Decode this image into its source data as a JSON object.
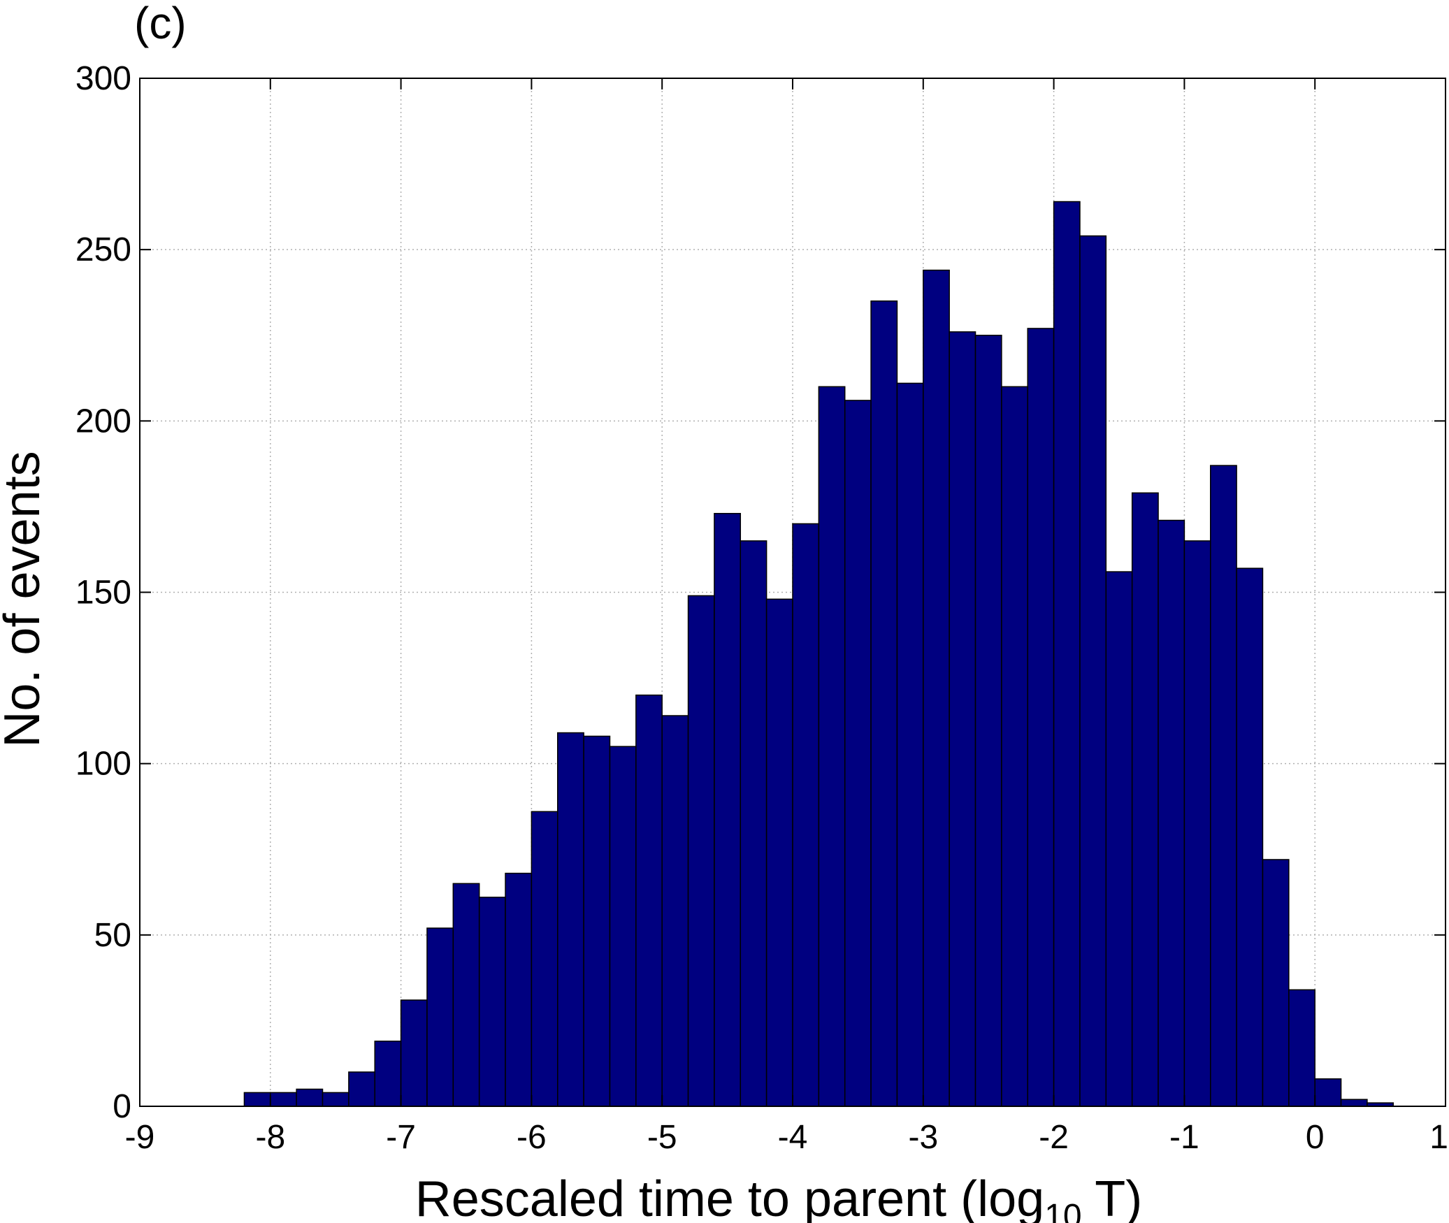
{
  "panel_label": "(c)",
  "chart_data": {
    "type": "bar",
    "subtype": "histogram",
    "xlabel_main": "Rescaled time to parent (log",
    "xlabel_sub": "10",
    "xlabel_tail": " T)",
    "ylabel": "No. of events",
    "xlim": [
      -9,
      1
    ],
    "ylim": [
      0,
      300
    ],
    "xticks": [
      "-9",
      "-8",
      "-7",
      "-6",
      "-5",
      "-4",
      "-3",
      "-2",
      "-1",
      "0",
      "1"
    ],
    "yticks": [
      "0",
      "50",
      "100",
      "150",
      "200",
      "250",
      "300"
    ],
    "grid": true,
    "bar_color": "#000080",
    "bin_width": 0.2,
    "bin_starts": [
      -8.2,
      -8.0,
      -7.8,
      -7.6,
      -7.4,
      -7.2,
      -7.0,
      -6.8,
      -6.6,
      -6.4,
      -6.2,
      -6.0,
      -5.8,
      -5.6,
      -5.4,
      -5.2,
      -5.0,
      -4.8,
      -4.6,
      -4.4,
      -4.2,
      -4.0,
      -3.8,
      -3.6,
      -3.4,
      -3.2,
      -3.0,
      -2.8,
      -2.6,
      -2.4,
      -2.2,
      -2.0,
      -1.8,
      -1.6,
      -1.4,
      -1.2,
      -1.0,
      -0.8,
      -0.6,
      -0.4,
      -0.2,
      0.0,
      0.2,
      0.4
    ],
    "values": [
      4,
      4,
      5,
      4,
      10,
      19,
      31,
      52,
      65,
      61,
      68,
      86,
      109,
      108,
      105,
      120,
      114,
      149,
      173,
      165,
      148,
      170,
      210,
      206,
      235,
      211,
      244,
      226,
      225,
      210,
      227,
      264,
      254,
      156,
      179,
      171,
      165,
      187,
      157,
      72,
      34,
      8,
      2,
      1
    ]
  }
}
